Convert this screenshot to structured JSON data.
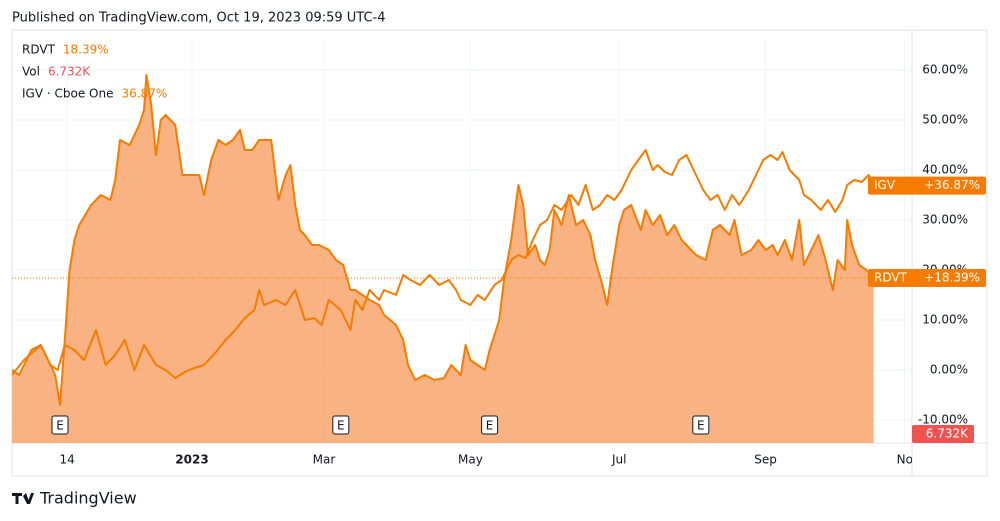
{
  "header": "Published on TradingView.com, Oct 19, 2023 09:59 UTC-4",
  "footer": "TradingView",
  "chart_data": {
    "type": "line",
    "xlim": [
      0,
      375
    ],
    "xticks": [
      {
        "value": 23,
        "label": "14"
      },
      {
        "value": 75,
        "label": "2023"
      },
      {
        "value": 130,
        "label": "Mar"
      },
      {
        "value": 191,
        "label": "May"
      },
      {
        "value": 253,
        "label": "Jul"
      },
      {
        "value": 314,
        "label": "Sep"
      },
      {
        "value": 372,
        "label": "No"
      }
    ],
    "ylim": [
      -14.6,
      66
    ],
    "yticks": [
      {
        "value": -10,
        "label": "-10.00%"
      },
      {
        "value": 0,
        "label": "0.00%"
      },
      {
        "value": 10,
        "label": "10.00%"
      },
      {
        "value": 20,
        "label": "20.00%"
      },
      {
        "value": 30,
        "label": "30.00%"
      },
      {
        "value": 40,
        "label": "40.00%"
      },
      {
        "value": 50,
        "label": "50.00%"
      },
      {
        "value": 60,
        "label": "60.00%"
      }
    ],
    "volume": {
      "name": "Vol",
      "value_label": "6.732K",
      "color": "#ef5350"
    },
    "earnings": {
      "label": "E",
      "x": [
        20,
        137,
        199,
        287
      ]
    },
    "series": [
      {
        "name": "RDVT",
        "tag": "RDVT",
        "legend_value": "18.39%",
        "price_label": "+18.39%",
        "color": "#f57c00",
        "fill": "#f8a56c",
        "area": true,
        "x": [
          0,
          3,
          8,
          12,
          15,
          18,
          20,
          22,
          24,
          26,
          28,
          33,
          37,
          41,
          43,
          45,
          49,
          53,
          55,
          56,
          58,
          60,
          62,
          64,
          68,
          71,
          74,
          78,
          80,
          83,
          86,
          89,
          92,
          95,
          97,
          100,
          103,
          108,
          111,
          114,
          116,
          118,
          120,
          122,
          125,
          128,
          132,
          135,
          138,
          141,
          143,
          146,
          149,
          153,
          155,
          160,
          163,
          165,
          168,
          172,
          176,
          180,
          183,
          187,
          189,
          191,
          194,
          197,
          199,
          203,
          205,
          208,
          211,
          213,
          215,
          218,
          220,
          222,
          224,
          226,
          229,
          232,
          235,
          238,
          241,
          243,
          246,
          248,
          250,
          253,
          255,
          258,
          262,
          264,
          267,
          270,
          273,
          276,
          279,
          283,
          285,
          289,
          292,
          295,
          299,
          301,
          304,
          308,
          311,
          314,
          317,
          319,
          322,
          325,
          328,
          330,
          333,
          336,
          339,
          342,
          344,
          347,
          348,
          350,
          353,
          356,
          359
        ],
        "values": [
          0,
          -1,
          4,
          5,
          2,
          -1,
          -7,
          6,
          20,
          26,
          29,
          33,
          35,
          34,
          38,
          46,
          45,
          49,
          52,
          59,
          53,
          43,
          50,
          51,
          49,
          39,
          39,
          39,
          35,
          42,
          46,
          45,
          46,
          48,
          44,
          44,
          46,
          46,
          34,
          39,
          41,
          33,
          28,
          27,
          25,
          25,
          24,
          22,
          21,
          16,
          16,
          15,
          14,
          13,
          11,
          9,
          6,
          1,
          -2,
          -1,
          -2,
          -1.6,
          1,
          -1,
          5,
          2,
          1,
          0,
          4,
          10,
          18,
          26,
          37,
          33,
          23,
          25,
          22,
          21,
          24,
          32,
          29,
          35,
          29,
          30,
          27,
          22,
          17,
          13,
          20,
          29,
          32,
          33,
          28,
          32,
          29,
          31,
          27,
          29,
          26,
          24,
          23,
          22,
          28,
          29,
          27,
          30,
          23,
          24,
          26,
          24,
          25,
          23,
          26,
          22,
          30,
          21,
          24,
          27,
          22,
          16,
          22,
          20,
          30,
          25,
          21,
          20,
          18.39
        ]
      },
      {
        "name": "IGV · Cboe One",
        "tag": "IGV",
        "legend_value": "36.87%",
        "price_label": "+36.87%",
        "color": "#f57c00",
        "area": false,
        "x": [
          0,
          5,
          12,
          16,
          19,
          22,
          26,
          30,
          35,
          39,
          43,
          47,
          51,
          55,
          60,
          64,
          68,
          72,
          76,
          80,
          85,
          89,
          93,
          97,
          101,
          103,
          105,
          110,
          114,
          118,
          122,
          126,
          129,
          132,
          137,
          141,
          143,
          146,
          149,
          153,
          155,
          160,
          163,
          166,
          170,
          174,
          178,
          182,
          185,
          187,
          191,
          194,
          197,
          201,
          204,
          208,
          211,
          214,
          217,
          220,
          223,
          226,
          229,
          233,
          236,
          239,
          242,
          245,
          248,
          251,
          254,
          258,
          261,
          264,
          267,
          269,
          272,
          275,
          278,
          281,
          285,
          288,
          291,
          294,
          297,
          300,
          303,
          307,
          310,
          313,
          316,
          319,
          321,
          324,
          328,
          330,
          333,
          337,
          340,
          343,
          346,
          348,
          351,
          354,
          357,
          359
        ],
        "values": [
          -1,
          2,
          5,
          1,
          0,
          5,
          4,
          2,
          8,
          1,
          3,
          6,
          0,
          5,
          1,
          0,
          -1.6,
          -0.4,
          0.4,
          1,
          3.6,
          6,
          8,
          10.4,
          12,
          16,
          13,
          14,
          13,
          16,
          10,
          10.4,
          9,
          14,
          12,
          8,
          14,
          12,
          16,
          14,
          16,
          15,
          19,
          18,
          17,
          19,
          17,
          18,
          16,
          14,
          13,
          15,
          14,
          17,
          18,
          22,
          23,
          22.4,
          26,
          29,
          30,
          33,
          32,
          35,
          33,
          37,
          32,
          33,
          35,
          34,
          36,
          40,
          42,
          44,
          40,
          41,
          39.6,
          39,
          42,
          43,
          39,
          36,
          34,
          35,
          32,
          35,
          33,
          36,
          39,
          42,
          43,
          42,
          43.6,
          40,
          38,
          35,
          34,
          32,
          34,
          31.6,
          34,
          37,
          38,
          37.6,
          39,
          36.87
        ]
      }
    ]
  }
}
